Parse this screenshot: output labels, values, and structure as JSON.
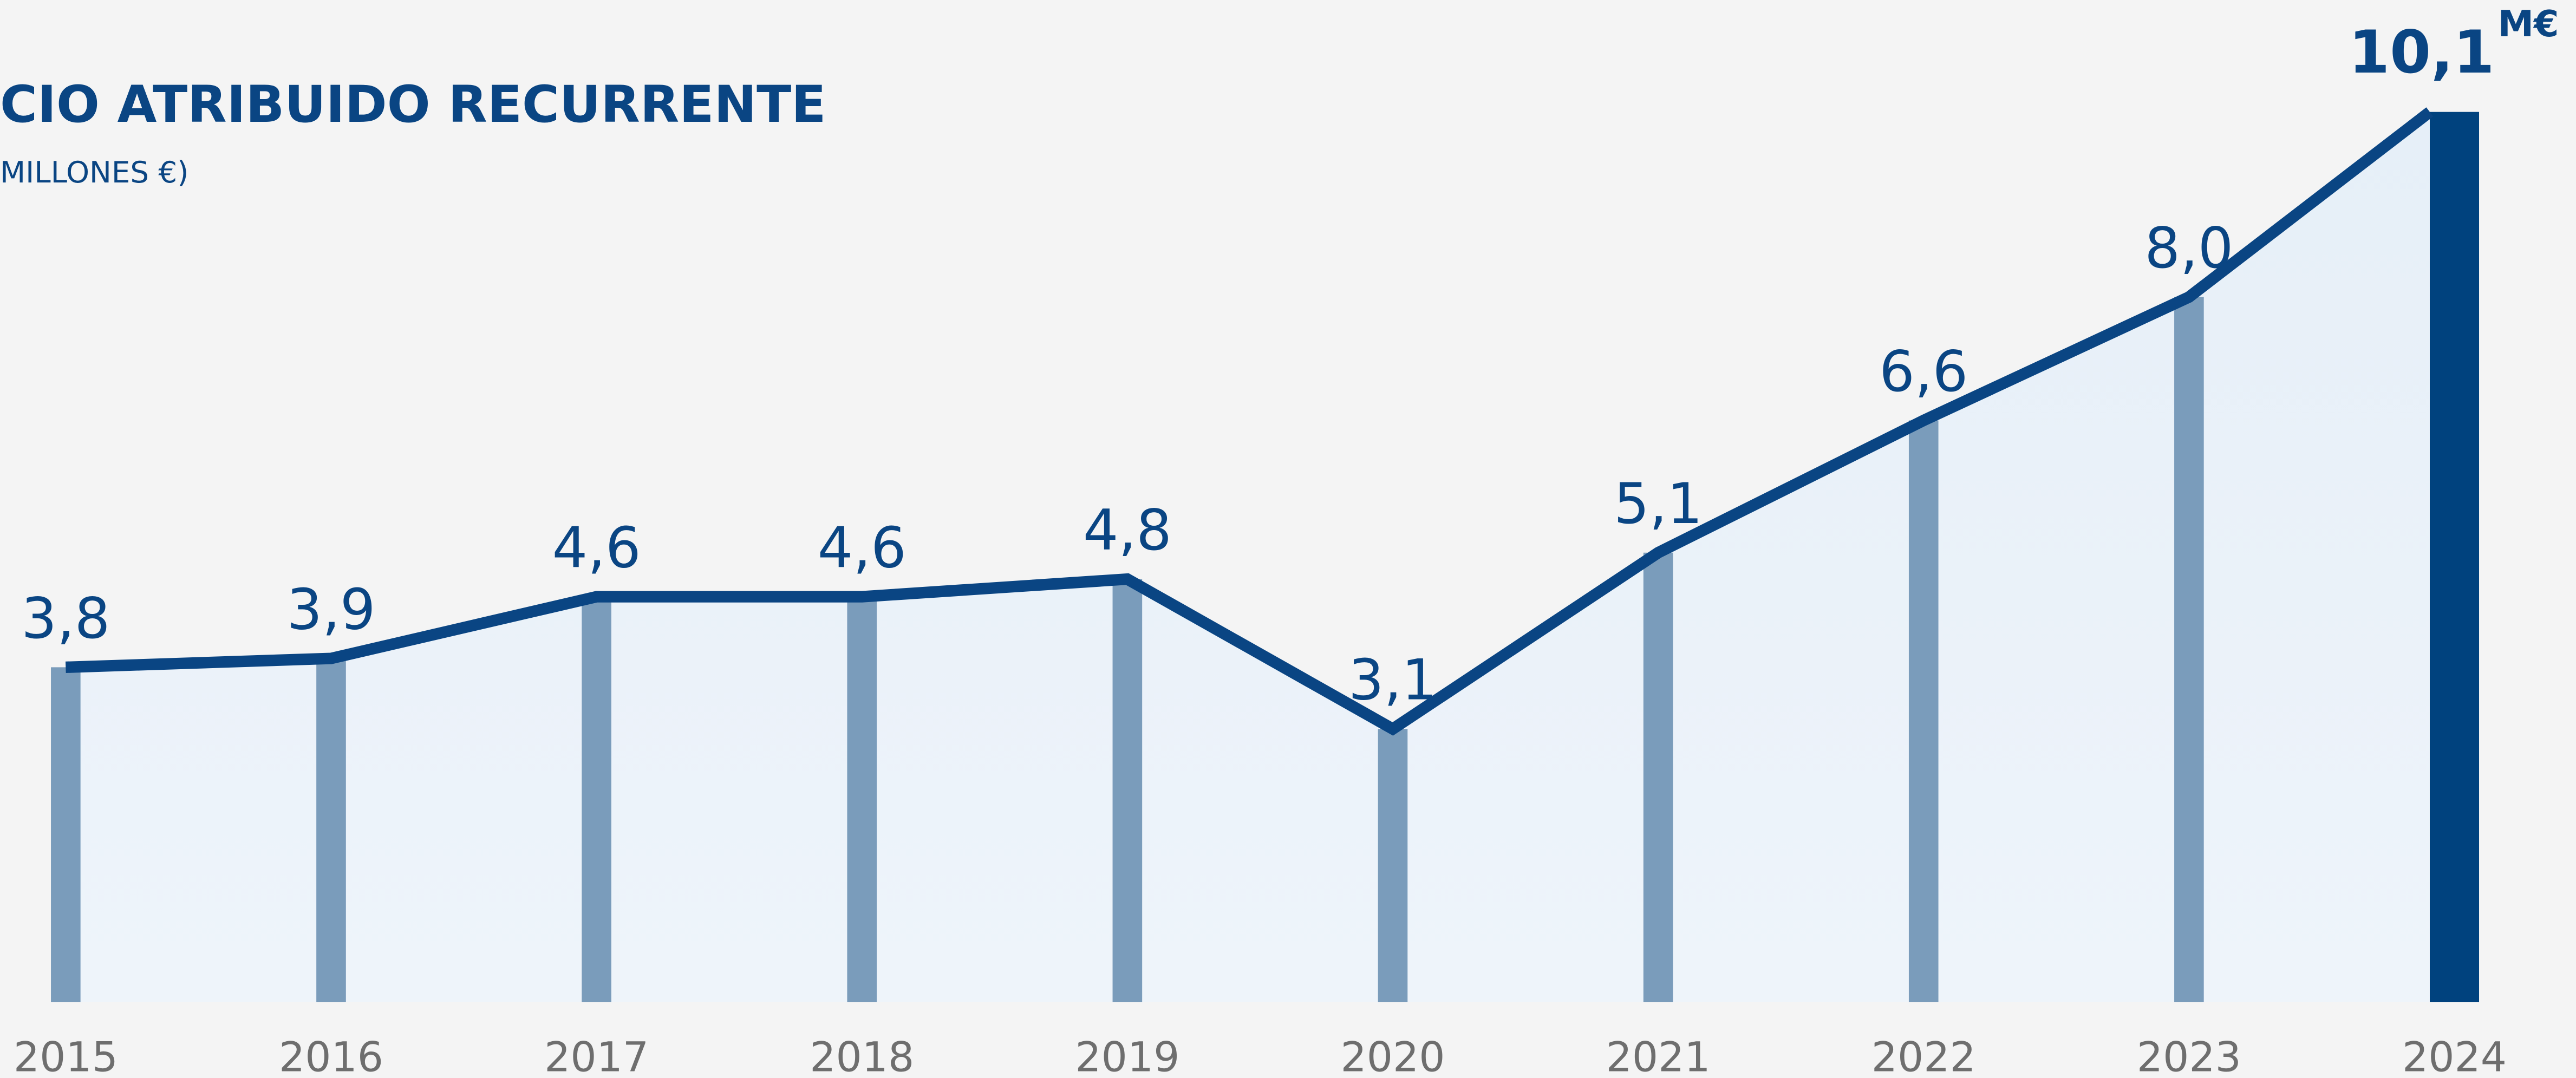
{
  "chart_data": {
    "type": "line-bar",
    "title": "CIO ATRIBUIDO RECURRENTE",
    "subtitle": "MILLONES €)",
    "unit": "M€",
    "categories": [
      "2015",
      "2016",
      "2017",
      "2018",
      "2019",
      "2020",
      "2021",
      "2022",
      "2023",
      "2024"
    ],
    "values": [
      3.8,
      3.9,
      4.6,
      4.6,
      4.8,
      3.1,
      5.1,
      6.6,
      8.0,
      10.1
    ],
    "value_labels": [
      "3,8",
      "3,9",
      "4,6",
      "4,6",
      "4,8",
      "3,1",
      "5,1",
      "6,6",
      "8,0",
      "10,1"
    ],
    "color": "#7a9cbb",
    "line_color": "#0a4583",
    "highlight_color": "#00427e"
  }
}
